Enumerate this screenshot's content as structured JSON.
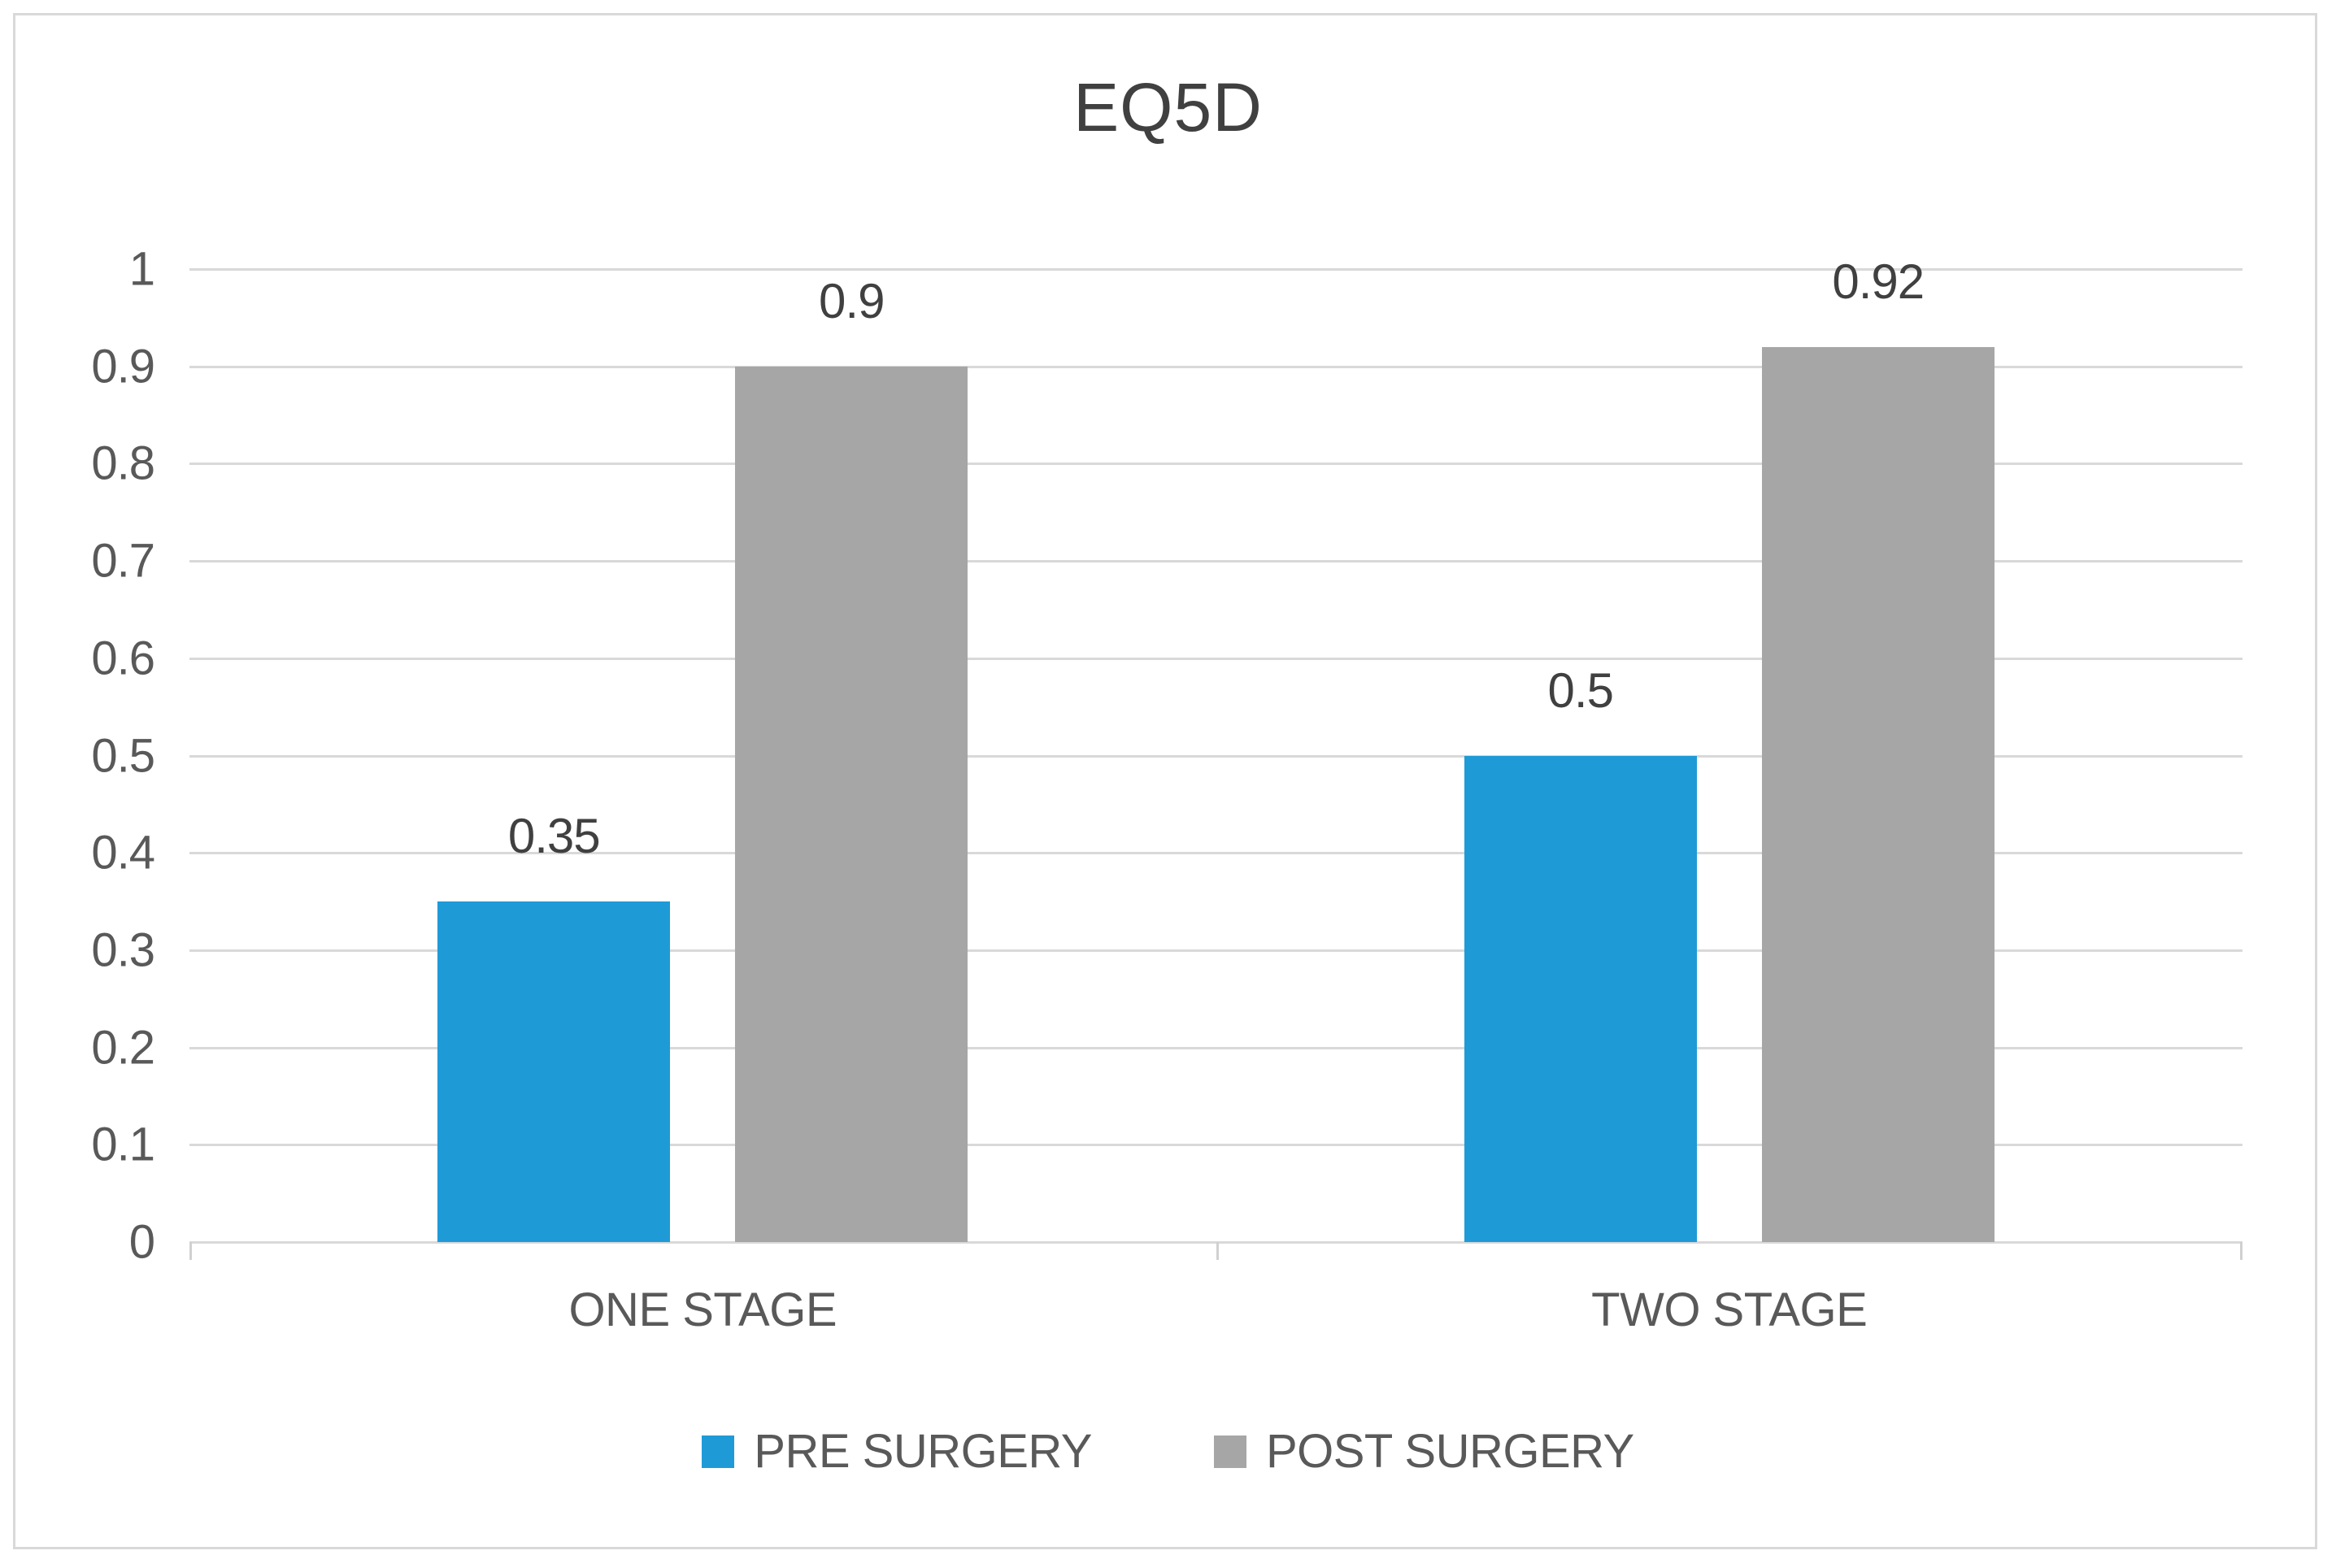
{
  "chart_data": {
    "type": "bar",
    "title": "EQ5D",
    "categories": [
      "ONE STAGE",
      "TWO STAGE"
    ],
    "series": [
      {
        "name": "PRE SURGERY",
        "color": "#1e9bd7",
        "values": [
          0.35,
          0.5
        ],
        "data_labels": [
          "0.35",
          "0.5"
        ]
      },
      {
        "name": "POST SURGERY",
        "color": "#a6a6a6",
        "values": [
          0.9,
          0.92
        ],
        "data_labels": [
          "0.9",
          "0.92"
        ]
      }
    ],
    "ylim": [
      0,
      1
    ],
    "y_tick_labels": [
      "1",
      "0.9",
      "0.8",
      "0.7",
      "0.6",
      "0.5",
      "0.4",
      "0.3",
      "0.2",
      "0.1",
      "0"
    ],
    "grid": true,
    "legend_position": "bottom"
  },
  "colors": {
    "title_text": "#404040",
    "axis_text": "#595959",
    "data_label_text": "#404040",
    "gridline": "#d9d9d9",
    "frame_border": "#d9d9d9",
    "background": "#ffffff",
    "pre_surgery_fill": "#1e9bd7",
    "post_surgery_fill": "#a6a6a6"
  }
}
